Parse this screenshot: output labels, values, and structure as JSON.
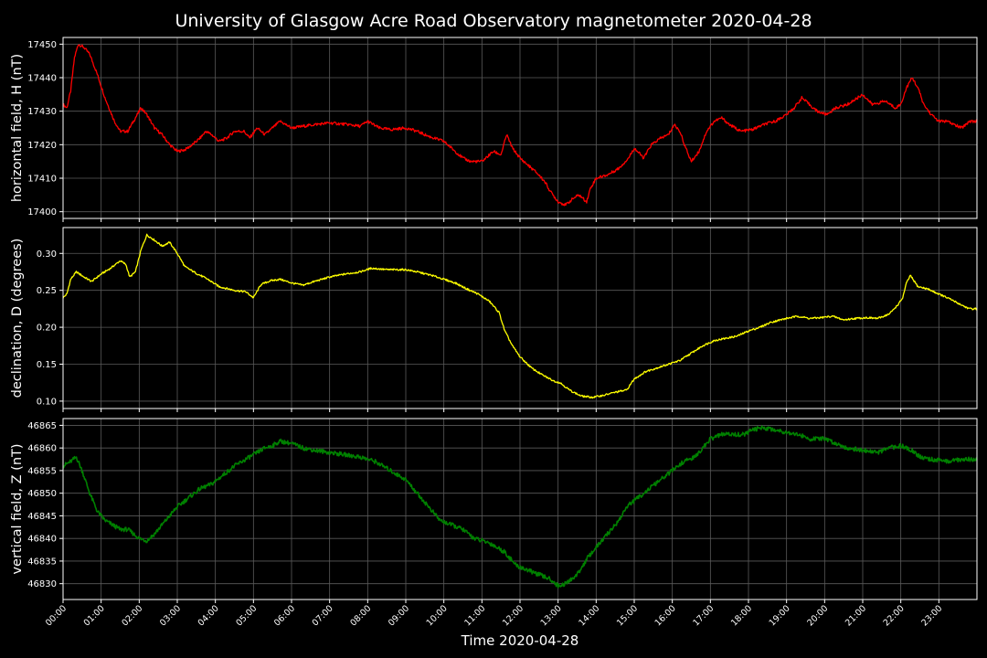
{
  "chart_data": {
    "type": "line",
    "title": "University of Glasgow Acre Road Observatory magnetometer 2020-04-28",
    "xlabel": "Time 2020-04-28",
    "x_ticks": [
      "00:00",
      "01:00",
      "02:00",
      "03:00",
      "04:00",
      "05:00",
      "06:00",
      "07:00",
      "08:00",
      "09:00",
      "10:00",
      "11:00",
      "12:00",
      "13:00",
      "14:00",
      "15:00",
      "16:00",
      "17:00",
      "18:00",
      "19:00",
      "20:00",
      "21:00",
      "22:00",
      "23:00"
    ],
    "xlim_hours": [
      0,
      24
    ],
    "grid": true,
    "panels": [
      {
        "name": "H",
        "ylabel": "horizontal field, H (nT)",
        "color": "#ff0000",
        "ylim": [
          17398,
          17452
        ],
        "yticks": [
          17400,
          17410,
          17420,
          17430,
          17440,
          17450
        ],
        "ytick_labels": [
          "17400",
          "17410",
          "17420",
          "17430",
          "17440",
          "17450"
        ],
        "points": [
          [
            0,
            17432
          ],
          [
            0.1,
            17431
          ],
          [
            0.2,
            17436
          ],
          [
            0.3,
            17446
          ],
          [
            0.4,
            17450
          ],
          [
            0.55,
            17449
          ],
          [
            0.7,
            17447
          ],
          [
            0.9,
            17441
          ],
          [
            1.1,
            17434
          ],
          [
            1.35,
            17427
          ],
          [
            1.5,
            17424
          ],
          [
            1.7,
            17424
          ],
          [
            1.9,
            17428
          ],
          [
            2.05,
            17431
          ],
          [
            2.2,
            17429
          ],
          [
            2.4,
            17425
          ],
          [
            2.6,
            17423
          ],
          [
            2.8,
            17420
          ],
          [
            3.0,
            17418
          ],
          [
            3.2,
            17418.5
          ],
          [
            3.4,
            17420
          ],
          [
            3.6,
            17422
          ],
          [
            3.75,
            17424
          ],
          [
            3.9,
            17423
          ],
          [
            4.1,
            17421
          ],
          [
            4.3,
            17422
          ],
          [
            4.5,
            17424
          ],
          [
            4.75,
            17424
          ],
          [
            4.9,
            17422
          ],
          [
            5.1,
            17425
          ],
          [
            5.3,
            17423
          ],
          [
            5.5,
            17425
          ],
          [
            5.7,
            17427
          ],
          [
            6.0,
            17425
          ],
          [
            6.3,
            17425.5
          ],
          [
            6.6,
            17426
          ],
          [
            7.0,
            17426.5
          ],
          [
            7.5,
            17426
          ],
          [
            7.8,
            17425.5
          ],
          [
            8.0,
            17427
          ],
          [
            8.3,
            17425
          ],
          [
            8.6,
            17424.5
          ],
          [
            9.0,
            17425
          ],
          [
            9.3,
            17424
          ],
          [
            9.6,
            17422.5
          ],
          [
            10.0,
            17421
          ],
          [
            10.3,
            17418
          ],
          [
            10.5,
            17416
          ],
          [
            10.7,
            17415
          ],
          [
            11.0,
            17415
          ],
          [
            11.3,
            17418
          ],
          [
            11.5,
            17417
          ],
          [
            11.65,
            17423
          ],
          [
            11.8,
            17419
          ],
          [
            12.0,
            17416
          ],
          [
            12.2,
            17414
          ],
          [
            12.45,
            17411.5
          ],
          [
            12.65,
            17409
          ],
          [
            12.8,
            17406
          ],
          [
            13.0,
            17403
          ],
          [
            13.2,
            17402
          ],
          [
            13.4,
            17404
          ],
          [
            13.55,
            17405
          ],
          [
            13.75,
            17403
          ],
          [
            13.85,
            17407
          ],
          [
            14.0,
            17410
          ],
          [
            14.3,
            17411
          ],
          [
            14.6,
            17413
          ],
          [
            14.85,
            17416
          ],
          [
            15.0,
            17419
          ],
          [
            15.25,
            17416
          ],
          [
            15.45,
            17420
          ],
          [
            15.7,
            17422
          ],
          [
            15.9,
            17423
          ],
          [
            16.05,
            17426
          ],
          [
            16.2,
            17424
          ],
          [
            16.35,
            17419
          ],
          [
            16.5,
            17415
          ],
          [
            16.7,
            17418
          ],
          [
            16.9,
            17424
          ],
          [
            17.1,
            17427
          ],
          [
            17.3,
            17428
          ],
          [
            17.5,
            17426
          ],
          [
            17.8,
            17424
          ],
          [
            18.1,
            17424.5
          ],
          [
            18.4,
            17426
          ],
          [
            18.7,
            17427
          ],
          [
            19.0,
            17429
          ],
          [
            19.2,
            17431
          ],
          [
            19.4,
            17434
          ],
          [
            19.6,
            17432
          ],
          [
            19.8,
            17430
          ],
          [
            20.05,
            17429
          ],
          [
            20.3,
            17431
          ],
          [
            20.6,
            17432
          ],
          [
            21.0,
            17435
          ],
          [
            21.25,
            17432
          ],
          [
            21.6,
            17433
          ],
          [
            21.85,
            17431
          ],
          [
            22.0,
            17432
          ],
          [
            22.15,
            17437
          ],
          [
            22.3,
            17440
          ],
          [
            22.45,
            17437
          ],
          [
            22.6,
            17432
          ],
          [
            22.8,
            17429
          ],
          [
            23.0,
            17427
          ],
          [
            23.2,
            17427
          ],
          [
            23.4,
            17426
          ],
          [
            23.6,
            17425
          ],
          [
            23.8,
            17427
          ],
          [
            24.0,
            17427
          ]
        ]
      },
      {
        "name": "D",
        "ylabel": "declination, D (degrees)",
        "color": "#ffff00",
        "ylim": [
          0.09,
          0.335
        ],
        "yticks": [
          0.1,
          0.15,
          0.2,
          0.25,
          0.3
        ],
        "ytick_labels": [
          "0.10",
          "0.15",
          "0.20",
          "0.25",
          "0.30"
        ],
        "points": [
          [
            0,
            0.24
          ],
          [
            0.1,
            0.245
          ],
          [
            0.2,
            0.265
          ],
          [
            0.35,
            0.275
          ],
          [
            0.55,
            0.268
          ],
          [
            0.75,
            0.262
          ],
          [
            1.0,
            0.272
          ],
          [
            1.25,
            0.28
          ],
          [
            1.5,
            0.29
          ],
          [
            1.65,
            0.285
          ],
          [
            1.75,
            0.268
          ],
          [
            1.9,
            0.275
          ],
          [
            2.05,
            0.305
          ],
          [
            2.2,
            0.325
          ],
          [
            2.4,
            0.318
          ],
          [
            2.6,
            0.31
          ],
          [
            2.8,
            0.315
          ],
          [
            3.0,
            0.3
          ],
          [
            3.2,
            0.282
          ],
          [
            3.5,
            0.273
          ],
          [
            3.8,
            0.265
          ],
          [
            4.1,
            0.255
          ],
          [
            4.5,
            0.25
          ],
          [
            4.8,
            0.248
          ],
          [
            5.0,
            0.24
          ],
          [
            5.2,
            0.258
          ],
          [
            5.45,
            0.263
          ],
          [
            5.7,
            0.265
          ],
          [
            6.0,
            0.26
          ],
          [
            6.3,
            0.257
          ],
          [
            6.6,
            0.262
          ],
          [
            7.0,
            0.268
          ],
          [
            7.4,
            0.272
          ],
          [
            7.8,
            0.275
          ],
          [
            8.1,
            0.28
          ],
          [
            8.5,
            0.278
          ],
          [
            9.0,
            0.278
          ],
          [
            9.3,
            0.275
          ],
          [
            9.7,
            0.27
          ],
          [
            10.0,
            0.265
          ],
          [
            10.3,
            0.26
          ],
          [
            10.6,
            0.252
          ],
          [
            10.9,
            0.245
          ],
          [
            11.2,
            0.235
          ],
          [
            11.45,
            0.22
          ],
          [
            11.6,
            0.195
          ],
          [
            11.8,
            0.175
          ],
          [
            12.0,
            0.16
          ],
          [
            12.3,
            0.145
          ],
          [
            12.6,
            0.135
          ],
          [
            12.9,
            0.127
          ],
          [
            13.05,
            0.125
          ],
          [
            13.3,
            0.115
          ],
          [
            13.6,
            0.107
          ],
          [
            13.9,
            0.105
          ],
          [
            14.2,
            0.108
          ],
          [
            14.5,
            0.112
          ],
          [
            14.8,
            0.115
          ],
          [
            15.0,
            0.13
          ],
          [
            15.3,
            0.14
          ],
          [
            15.6,
            0.145
          ],
          [
            15.9,
            0.15
          ],
          [
            16.2,
            0.155
          ],
          [
            16.5,
            0.165
          ],
          [
            16.8,
            0.175
          ],
          [
            17.1,
            0.182
          ],
          [
            17.4,
            0.185
          ],
          [
            17.7,
            0.188
          ],
          [
            18.0,
            0.195
          ],
          [
            18.3,
            0.2
          ],
          [
            18.6,
            0.207
          ],
          [
            19.0,
            0.212
          ],
          [
            19.3,
            0.215
          ],
          [
            19.6,
            0.212
          ],
          [
            19.9,
            0.213
          ],
          [
            20.2,
            0.215
          ],
          [
            20.5,
            0.21
          ],
          [
            20.8,
            0.212
          ],
          [
            21.1,
            0.213
          ],
          [
            21.4,
            0.212
          ],
          [
            21.7,
            0.218
          ],
          [
            21.95,
            0.232
          ],
          [
            22.05,
            0.24
          ],
          [
            22.15,
            0.26
          ],
          [
            22.25,
            0.27
          ],
          [
            22.45,
            0.255
          ],
          [
            22.7,
            0.252
          ],
          [
            23.0,
            0.245
          ],
          [
            23.3,
            0.238
          ],
          [
            23.6,
            0.23
          ],
          [
            23.8,
            0.225
          ],
          [
            24.0,
            0.225
          ]
        ]
      },
      {
        "name": "Z",
        "ylabel": "vertical field, Z (nT)",
        "color": "#008000",
        "ylim": [
          46826.5,
          46866.5
        ],
        "yticks": [
          46830,
          46835,
          46840,
          46845,
          46850,
          46855,
          46860,
          46865
        ],
        "ytick_labels": [
          "46830",
          "46835",
          "46840",
          "46845",
          "46850",
          "46855",
          "46860",
          "46865"
        ],
        "points": [
          [
            0,
            46856
          ],
          [
            0.2,
            46857
          ],
          [
            0.35,
            46858
          ],
          [
            0.5,
            46855
          ],
          [
            0.7,
            46850
          ],
          [
            0.9,
            46846
          ],
          [
            1.1,
            46844
          ],
          [
            1.3,
            46843
          ],
          [
            1.5,
            46842
          ],
          [
            1.7,
            46842
          ],
          [
            1.85,
            46841
          ],
          [
            2.0,
            46840
          ],
          [
            2.2,
            46839.5
          ],
          [
            2.4,
            46841
          ],
          [
            2.6,
            46843
          ],
          [
            2.8,
            46845
          ],
          [
            3.0,
            46847
          ],
          [
            3.3,
            46849
          ],
          [
            3.6,
            46851
          ],
          [
            3.9,
            46852
          ],
          [
            4.2,
            46854
          ],
          [
            4.5,
            46856
          ],
          [
            4.8,
            46857.5
          ],
          [
            5.1,
            46859
          ],
          [
            5.3,
            46860
          ],
          [
            5.5,
            46860.5
          ],
          [
            5.7,
            46861.5
          ],
          [
            6.0,
            46861
          ],
          [
            6.3,
            46860
          ],
          [
            6.6,
            46859.5
          ],
          [
            7.0,
            46859
          ],
          [
            7.4,
            46858.5
          ],
          [
            7.8,
            46858
          ],
          [
            8.2,
            46857
          ],
          [
            8.6,
            46855
          ],
          [
            9.0,
            46853
          ],
          [
            9.3,
            46850
          ],
          [
            9.6,
            46847
          ],
          [
            9.9,
            46844
          ],
          [
            10.2,
            46843
          ],
          [
            10.5,
            46842
          ],
          [
            10.8,
            46840
          ],
          [
            11.2,
            46839
          ],
          [
            11.6,
            46837
          ],
          [
            11.9,
            46834
          ],
          [
            12.2,
            46833
          ],
          [
            12.5,
            46832
          ],
          [
            12.8,
            46831
          ],
          [
            13.0,
            46829.5
          ],
          [
            13.2,
            46830
          ],
          [
            13.5,
            46832
          ],
          [
            13.8,
            46836
          ],
          [
            14.0,
            46838
          ],
          [
            14.3,
            46841
          ],
          [
            14.6,
            46844
          ],
          [
            14.8,
            46847
          ],
          [
            15.1,
            46849
          ],
          [
            15.4,
            46851
          ],
          [
            15.7,
            46853
          ],
          [
            16.0,
            46855
          ],
          [
            16.3,
            46857
          ],
          [
            16.6,
            46858
          ],
          [
            16.8,
            46860
          ],
          [
            17.0,
            46862
          ],
          [
            17.3,
            46863
          ],
          [
            17.6,
            46863
          ],
          [
            17.9,
            46863
          ],
          [
            18.1,
            46864
          ],
          [
            18.4,
            46864.5
          ],
          [
            18.7,
            46864
          ],
          [
            19.0,
            46863.5
          ],
          [
            19.3,
            46863
          ],
          [
            19.6,
            46862
          ],
          [
            20.0,
            46862
          ],
          [
            20.3,
            46861
          ],
          [
            20.6,
            46860
          ],
          [
            21.0,
            46859.5
          ],
          [
            21.4,
            46859
          ],
          [
            21.7,
            46860
          ],
          [
            22.0,
            46860.5
          ],
          [
            22.3,
            46859.5
          ],
          [
            22.5,
            46858
          ],
          [
            22.8,
            46857.5
          ],
          [
            23.2,
            46857
          ],
          [
            23.6,
            46857.5
          ],
          [
            24.0,
            46857.5
          ]
        ]
      }
    ]
  }
}
